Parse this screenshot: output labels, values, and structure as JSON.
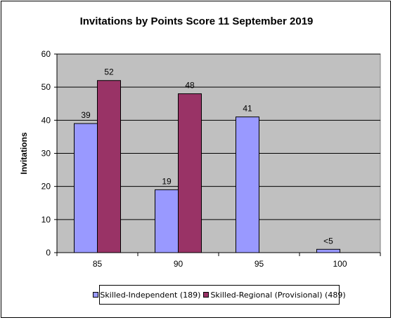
{
  "chart_data": {
    "type": "bar",
    "title": "Invitations by Points Score 11 September 2019",
    "ylabel": "Invitations",
    "xlabel": "",
    "ylim": [
      0,
      60
    ],
    "yticks": [
      0,
      10,
      20,
      30,
      40,
      50,
      60
    ],
    "categories": [
      "85",
      "90",
      "95",
      "100"
    ],
    "grid": true,
    "legend_position": "bottom",
    "plot_background": "#c0c0c0",
    "series": [
      {
        "name": "Skilled-Independent (189)",
        "color": "#9999ff",
        "values": [
          39,
          19,
          41,
          1
        ],
        "labels": [
          "39",
          "19",
          "41",
          "<5"
        ]
      },
      {
        "name": "Skilled-Regional (Provisional) (489)",
        "color": "#993366",
        "values": [
          52,
          48,
          null,
          null
        ],
        "labels": [
          "52",
          "48",
          null,
          null
        ]
      }
    ]
  }
}
